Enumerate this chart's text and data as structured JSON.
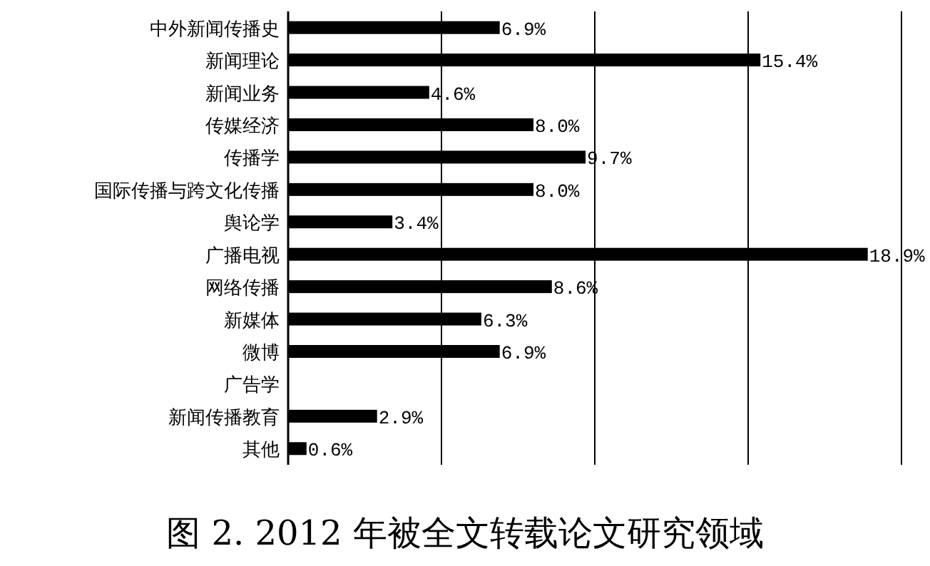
{
  "chart_data": {
    "type": "bar",
    "orientation": "horizontal",
    "title": "图 2. 2012 年被全文转载论文研究领域",
    "categories": [
      "中外新闻传播史",
      "新闻理论",
      "新闻业务",
      "传媒经济",
      "传播学",
      "国际传播与跨文化传播",
      "舆论学",
      "广播电视",
      "网络传播",
      "新媒体",
      "微博",
      "广告学",
      "新闻传播教育",
      "其他"
    ],
    "values": [
      6.9,
      15.4,
      4.6,
      8.0,
      9.7,
      8.0,
      3.4,
      18.9,
      8.6,
      6.3,
      6.9,
      null,
      2.9,
      0.6
    ],
    "value_labels": [
      "6.9%",
      "15.4%",
      "4.6%",
      "8.0%",
      "9.7%",
      "8.0%",
      "3.4%",
      "18.9%",
      "8.6%",
      "6.3%",
      "6.9%",
      null,
      "2.9%",
      "0.6%"
    ],
    "color": "#000000",
    "xlim": [
      0,
      20
    ],
    "xticks": [
      {
        "value": 0,
        "label": null
      },
      {
        "value": 5,
        "label": null
      },
      {
        "value": 10,
        "label": null
      },
      {
        "value": 15,
        "label": null
      },
      {
        "value": 20,
        "label": null
      }
    ],
    "tick_labels": "y",
    "grid": "x"
  }
}
